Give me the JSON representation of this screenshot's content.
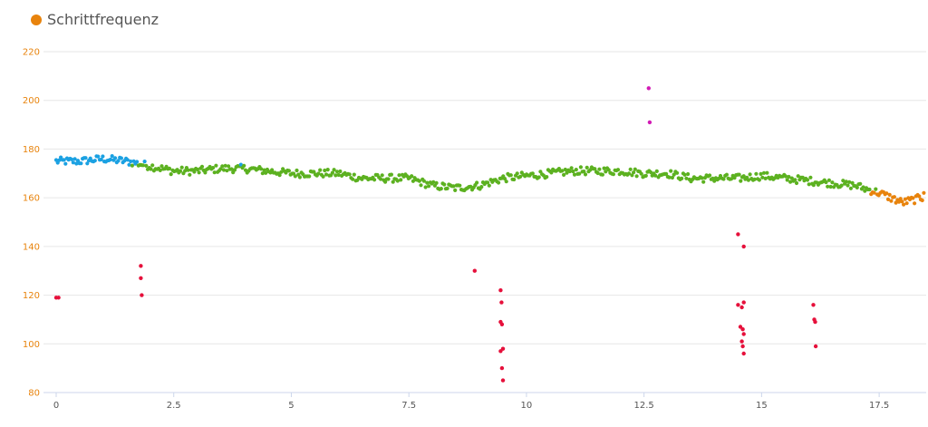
{
  "legend": {
    "label": "Schrittfrequenz",
    "color": "#e8830c"
  },
  "colors": {
    "grid": "#e6e6e6",
    "axis": "#ccd6eb",
    "ytick": "#e8830c",
    "xtick": "#555555",
    "zones": {
      "blue": "#1ba1e2",
      "green": "#5cb120",
      "orange": "#e8830c",
      "red": "#e6103b",
      "magenta": "#d21bb5"
    }
  },
  "chart_data": {
    "type": "scatter",
    "title": "",
    "xlabel": "",
    "ylabel": "",
    "xlim": [
      0,
      18.5
    ],
    "ylim": [
      80,
      220
    ],
    "grid": "horizontal",
    "legend_position": "top-left",
    "x_ticks": [
      "0",
      "2.5",
      "5",
      "7.5",
      "10",
      "12.5",
      "15",
      "17.5"
    ],
    "y_ticks": [
      "80",
      "100",
      "120",
      "140",
      "160",
      "180",
      "200",
      "220"
    ],
    "trend": {
      "x": [
        0,
        0.5,
        1,
        1.5,
        2,
        2.5,
        3,
        3.5,
        4,
        4.5,
        5,
        5.5,
        6,
        6.5,
        7,
        7.5,
        8,
        8.5,
        9,
        9.5,
        10,
        10.5,
        11,
        11.5,
        12,
        12.5,
        13,
        13.5,
        14,
        14.5,
        15,
        15.5,
        16,
        16.5,
        17,
        17.5,
        18,
        18.4
      ],
      "y": [
        175,
        175,
        176,
        175,
        173,
        171,
        171,
        172,
        172,
        171,
        170,
        170,
        170,
        168,
        168,
        168,
        165,
        164,
        165,
        168,
        169,
        170,
        171,
        171,
        171,
        170,
        170,
        168,
        168,
        168,
        169,
        168,
        167,
        166,
        165,
        162,
        158,
        160
      ]
    },
    "outliers": [
      {
        "x": 0.0,
        "y": 119
      },
      {
        "x": 0.05,
        "y": 119
      },
      {
        "x": 1.8,
        "y": 132
      },
      {
        "x": 1.8,
        "y": 127
      },
      {
        "x": 1.82,
        "y": 120
      },
      {
        "x": 8.9,
        "y": 130
      },
      {
        "x": 9.45,
        "y": 122
      },
      {
        "x": 9.47,
        "y": 117
      },
      {
        "x": 9.45,
        "y": 109
      },
      {
        "x": 9.48,
        "y": 108
      },
      {
        "x": 9.5,
        "y": 98
      },
      {
        "x": 9.45,
        "y": 97
      },
      {
        "x": 9.48,
        "y": 90
      },
      {
        "x": 9.5,
        "y": 85
      },
      {
        "x": 12.6,
        "y": 205,
        "color": "magenta"
      },
      {
        "x": 12.62,
        "y": 191,
        "color": "magenta"
      },
      {
        "x": 14.5,
        "y": 145
      },
      {
        "x": 14.62,
        "y": 140
      },
      {
        "x": 14.5,
        "y": 116
      },
      {
        "x": 14.58,
        "y": 115
      },
      {
        "x": 14.62,
        "y": 117
      },
      {
        "x": 14.55,
        "y": 107
      },
      {
        "x": 14.6,
        "y": 106
      },
      {
        "x": 14.62,
        "y": 104
      },
      {
        "x": 14.58,
        "y": 101
      },
      {
        "x": 14.6,
        "y": 99
      },
      {
        "x": 14.62,
        "y": 96
      },
      {
        "x": 16.1,
        "y": 116
      },
      {
        "x": 16.12,
        "y": 110
      },
      {
        "x": 16.14,
        "y": 109
      },
      {
        "x": 16.15,
        "y": 99
      }
    ]
  }
}
